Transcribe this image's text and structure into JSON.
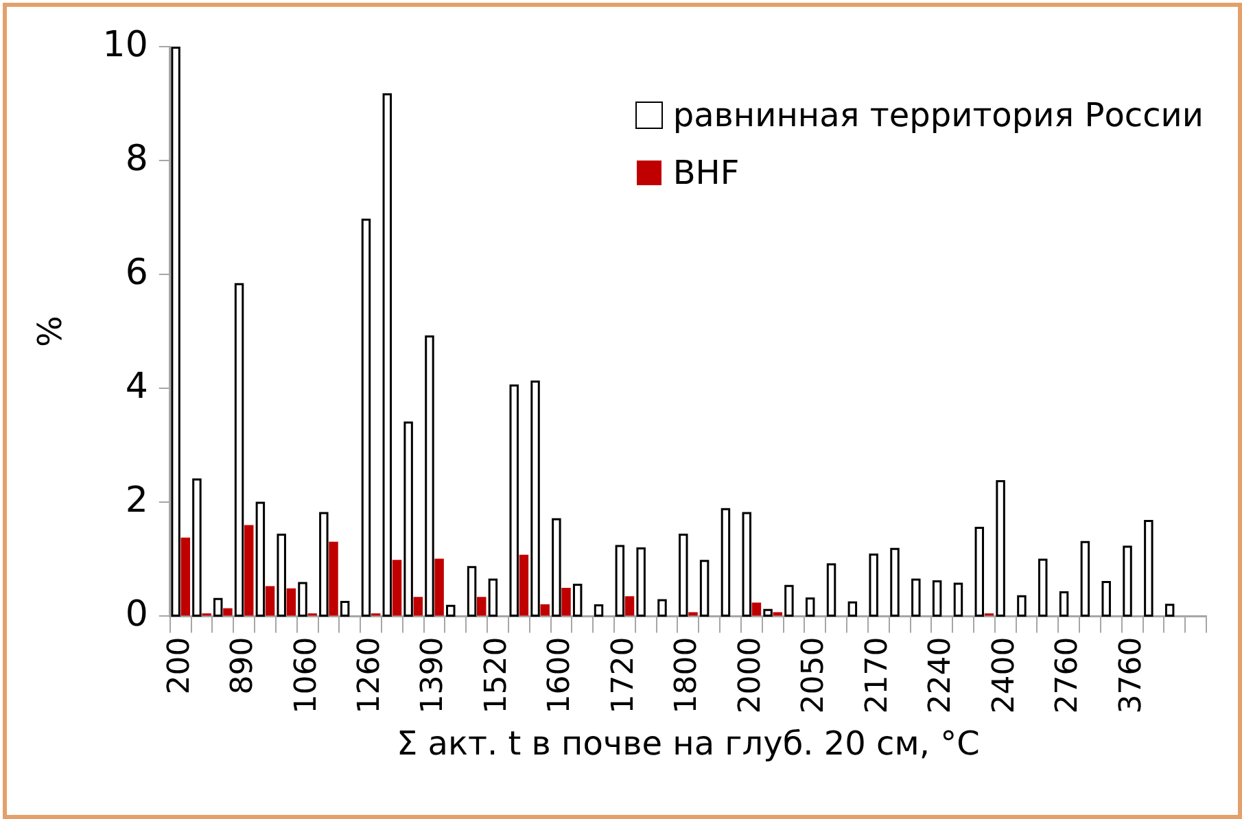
{
  "chart_data": {
    "type": "bar",
    "xlabel": "Σ акт. t в почве на глуб. 20 см, °C",
    "ylabel": "%",
    "categories": [
      "200",
      null,
      null,
      "890",
      null,
      null,
      "1060",
      null,
      null,
      "1260",
      null,
      null,
      "1390",
      null,
      null,
      "1520",
      null,
      null,
      "1600",
      null,
      null,
      "1720",
      null,
      null,
      "1800",
      null,
      null,
      "2000",
      null,
      null,
      "2050",
      null,
      null,
      "2170",
      null,
      null,
      "2240",
      null,
      null,
      "2400",
      null,
      null,
      "2760",
      null,
      null,
      "3760",
      null,
      null,
      null
    ],
    "series": [
      {
        "name": "равнинная территория России",
        "color": "#ffffff",
        "values": [
          10,
          2.42,
          0.32,
          5.85,
          2.01,
          1.45,
          0.6,
          1.83,
          0.27,
          6.98,
          9.18,
          3.42,
          4.93,
          0.2,
          0.88,
          0.66,
          4.07,
          4.14,
          1.72,
          0.57,
          0.21,
          1.25,
          1.21,
          0.3,
          1.45,
          0.99,
          1.9,
          1.83,
          0.13,
          0.55,
          0.33,
          0.93,
          0.26,
          1.1,
          1.2,
          0.66,
          0.63,
          0.59,
          1.57,
          2.39,
          0.37,
          1.01,
          0.44,
          1.32,
          0.62,
          1.24,
          1.69,
          0.22,
          null
        ]
      },
      {
        "name": "BHF",
        "color": "#c00000",
        "values": [
          1.38,
          0.05,
          0.14,
          1.6,
          0.53,
          0.49,
          0.05,
          1.31,
          null,
          0.05,
          0.99,
          0.34,
          1.01,
          null,
          0.34,
          null,
          1.08,
          0.21,
          0.5,
          null,
          null,
          0.35,
          null,
          null,
          0.07,
          null,
          null,
          0.24,
          0.07,
          null,
          null,
          null,
          null,
          null,
          null,
          null,
          null,
          null,
          0.05,
          null,
          null,
          null,
          null,
          null,
          null,
          null,
          null,
          null,
          null
        ]
      }
    ],
    "ylim": [
      0,
      10
    ],
    "yticks": [
      0,
      2,
      4,
      6,
      8,
      10
    ],
    "grid": false,
    "legend": "top right"
  }
}
